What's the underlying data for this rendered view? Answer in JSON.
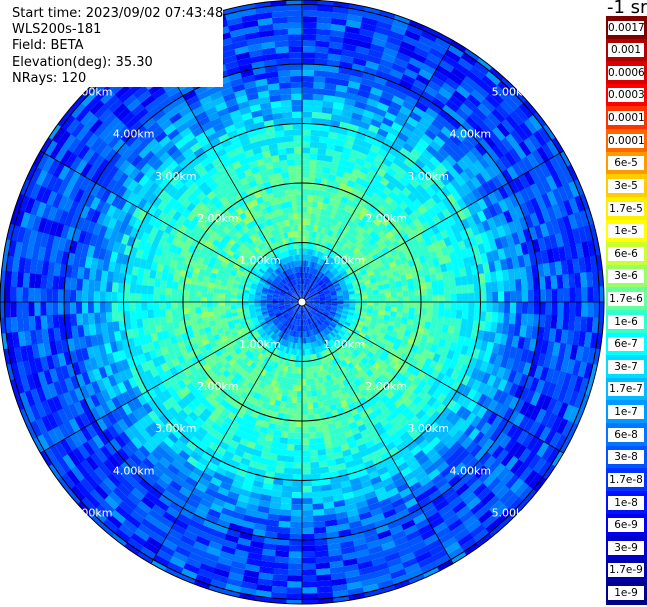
{
  "header": {
    "start_time": "Start time: 2023/09/02 07:43:48",
    "instrument": "WLS200s-181",
    "field": "Field: BETA",
    "elevation": "Elevation(deg): 35.30",
    "nrays": "NRays: 120"
  },
  "colorbar": {
    "title": "-1 sr",
    "labels": [
      "0.0017",
      "0.001",
      "0.0006",
      "0.0003",
      "0.00017",
      "0.0001",
      "6e-5",
      "3e-5",
      "1.7e-5",
      "1e-5",
      "6e-6",
      "3e-6",
      "1.7e-6",
      "1e-6",
      "6e-7",
      "3e-7",
      "1.7e-7",
      "1e-7",
      "6e-8",
      "3e-8",
      "1.7e-8",
      "1e-8",
      "6e-9",
      "3e-9",
      "1.7e-9",
      "1e-9"
    ],
    "colors": [
      "#7f0000",
      "#b00000",
      "#d80000",
      "#ff0000",
      "#ff3300",
      "#ff6600",
      "#ff9900",
      "#ffcc00",
      "#ffee00",
      "#ffff00",
      "#ccff33",
      "#99ff66",
      "#66ff99",
      "#33ffcc",
      "#00ffff",
      "#00ddff",
      "#00bbff",
      "#0099ff",
      "#0077ff",
      "#0055ff",
      "#0033ff",
      "#0011ff",
      "#0000ee",
      "#0000cc",
      "#0000aa",
      "#000088"
    ]
  },
  "chart_data": {
    "type": "heatmap",
    "projection": "polar PPI",
    "range_rings_km": [
      1,
      2,
      3,
      4,
      5
    ],
    "ring_labels": [
      "1.00km",
      "2.00km",
      "3.00km",
      "4.00km",
      "5.00km"
    ],
    "spokes_every_deg": 30,
    "nrays": 120,
    "field": "BETA",
    "units": "-1 sr",
    "radial_profile": [
      {
        "range_km": 0.0,
        "beta": "3e-8"
      },
      {
        "range_km": 0.5,
        "beta": "3e-8"
      },
      {
        "range_km": 1.0,
        "beta": "1.7e-6"
      },
      {
        "range_km": 2.0,
        "beta": "1.7e-6"
      },
      {
        "range_km": 2.5,
        "beta": "1e-6"
      },
      {
        "range_km": 3.0,
        "beta": "6e-7"
      },
      {
        "range_km": 4.0,
        "beta": "3e-8"
      },
      {
        "range_km": 5.0,
        "beta": "3e-8"
      },
      {
        "range_km": 6.0,
        "beta": "3e-8"
      }
    ]
  }
}
